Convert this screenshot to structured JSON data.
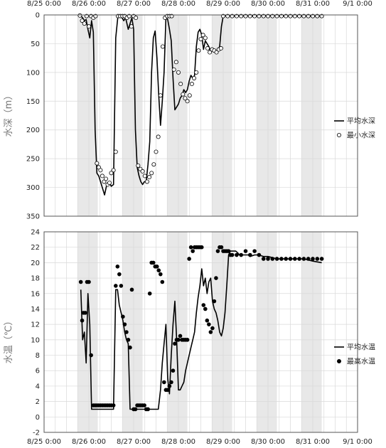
{
  "chart_data": [
    {
      "type": "line",
      "ylabel": "水深（m）",
      "y_reversed": true,
      "ylim": [
        0,
        350
      ],
      "y_ticks": [
        0,
        50,
        100,
        150,
        200,
        250,
        300,
        350
      ],
      "xlim": [
        "8/25 0:00",
        "9/1 0:00"
      ],
      "x_tick_labels": [
        "8/25 0:00",
        "8/26 0:00",
        "8/27 0:00",
        "8/28 0:00",
        "8/29 0:00",
        "8/30 0:00",
        "8/31 0:00",
        "9/1 0:00"
      ],
      "x_tick_labels_position": "top",
      "shaded_night_periods": [
        [
          0.75,
          1.2
        ],
        [
          1.75,
          2.2
        ],
        [
          2.75,
          3.2
        ],
        [
          3.75,
          4.2
        ],
        [
          4.75,
          5.2
        ],
        [
          5.75,
          6.2
        ]
      ],
      "legend_position": "right",
      "grid": true,
      "series": [
        {
          "name": "平均水深",
          "style": "line",
          "color": "#000000",
          "x": [
            0.82,
            0.86,
            0.9,
            0.94,
            0.98,
            1.02,
            1.06,
            1.1,
            1.14,
            1.18,
            1.22,
            1.26,
            1.3,
            1.35,
            1.4,
            1.45,
            1.5,
            1.55,
            1.6,
            1.65,
            1.7,
            1.74,
            1.78,
            1.82,
            1.88,
            1.92,
            1.96,
            2.0,
            2.04,
            2.08,
            2.12,
            2.16,
            2.2,
            2.24,
            2.28,
            2.32,
            2.36,
            2.4,
            2.44,
            2.48,
            2.52,
            2.56,
            2.6,
            2.64,
            2.68,
            2.72,
            2.76,
            2.8,
            2.84,
            2.88,
            2.92,
            2.96,
            3.0,
            3.04,
            3.08,
            3.12,
            3.16,
            3.2,
            3.24,
            3.28,
            3.32,
            3.36,
            3.4,
            3.44,
            3.48,
            3.52,
            3.56,
            3.6,
            3.64,
            3.68,
            3.72,
            3.76,
            3.8,
            3.84,
            3.88,
            3.92,
            3.96,
            4.0,
            4.04,
            4.08,
            4.12,
            4.16,
            4.2,
            4.24,
            4.28,
            4.32,
            4.36,
            4.4,
            4.44,
            4.48,
            4.52,
            4.56,
            4.6,
            4.64,
            4.68,
            4.72,
            4.76,
            4.8,
            4.84,
            4.88,
            4.92,
            4.96,
            5.0,
            5.2,
            5.4,
            5.6,
            5.8,
            6.0,
            6.2
          ],
          "y": [
            2,
            5,
            10,
            8,
            25,
            40,
            10,
            30,
            200,
            275,
            280,
            290,
            300,
            313,
            295,
            290,
            298,
            295,
            40,
            2,
            3,
            5,
            10,
            5,
            25,
            15,
            5,
            25,
            200,
            265,
            280,
            290,
            295,
            290,
            290,
            260,
            220,
            100,
            40,
            28,
            75,
            140,
            192,
            150,
            100,
            5,
            8,
            25,
            45,
            110,
            165,
            160,
            155,
            145,
            140,
            130,
            135,
            130,
            115,
            105,
            110,
            105,
            55,
            30,
            25,
            35,
            60,
            45,
            50,
            55,
            65,
            60,
            62,
            65,
            60,
            55,
            20,
            2,
            1,
            1,
            1,
            2,
            2,
            2,
            1,
            2,
            1,
            1,
            2,
            1,
            1,
            2,
            1,
            2,
            1,
            1,
            2,
            2,
            1,
            2,
            2,
            1,
            1,
            1,
            2,
            2,
            2,
            2,
            2
          ]
        },
        {
          "name": "最小水深",
          "style": "open-circle",
          "color": "#000000",
          "x": [
            0.8,
            0.85,
            0.9,
            0.95,
            1.0,
            1.05,
            1.1,
            1.15,
            1.18,
            1.22,
            1.26,
            1.3,
            1.34,
            1.38,
            1.42,
            1.46,
            1.5,
            1.55,
            1.6,
            1.65,
            1.7,
            1.75,
            1.8,
            1.85,
            1.9,
            1.95,
            2.0,
            2.05,
            2.1,
            2.15,
            2.2,
            2.25,
            2.3,
            2.35,
            2.4,
            2.45,
            2.5,
            2.55,
            2.6,
            2.65,
            2.7,
            2.75,
            2.8,
            2.85,
            2.9,
            2.95,
            3.0,
            3.05,
            3.1,
            3.15,
            3.2,
            3.25,
            3.3,
            3.35,
            3.4,
            3.45,
            3.5,
            3.55,
            3.6,
            3.65,
            3.7,
            3.75,
            3.8,
            3.85,
            3.9,
            3.95,
            4.0,
            4.1,
            4.2,
            4.3,
            4.4,
            4.5,
            4.6,
            4.7,
            4.8,
            4.9,
            5.0,
            5.1,
            5.2,
            5.3,
            5.4,
            5.5,
            5.6,
            5.7,
            5.8,
            5.9,
            6.0,
            6.1,
            6.2
          ],
          "y": [
            1,
            10,
            15,
            2,
            20,
            2,
            5,
            2,
            258,
            265,
            270,
            280,
            290,
            285,
            295,
            292,
            275,
            270,
            238,
            2,
            2,
            2,
            2,
            5,
            2,
            20,
            2,
            5,
            262,
            268,
            272,
            280,
            290,
            282,
            275,
            260,
            238,
            212,
            140,
            55,
            5,
            2,
            2,
            2,
            95,
            82,
            100,
            120,
            138,
            145,
            150,
            140,
            120,
            110,
            100,
            62,
            42,
            35,
            40,
            58,
            65,
            60,
            62,
            65,
            60,
            58,
            2,
            2,
            2,
            2,
            2,
            2,
            2,
            2,
            2,
            2,
            2,
            2,
            2,
            2,
            2,
            2,
            2,
            2,
            2,
            2,
            2,
            2,
            2
          ]
        }
      ]
    },
    {
      "type": "line",
      "ylabel": "水温（℃）",
      "ylim": [
        -2,
        24
      ],
      "y_ticks": [
        -2,
        0,
        2,
        4,
        6,
        8,
        10,
        12,
        14,
        16,
        18,
        20,
        22,
        24
      ],
      "xlim": [
        "8/25 0:00",
        "9/1 0:00"
      ],
      "x_tick_labels": [
        "8/25 0:00",
        "8/26 0:00",
        "8/27 0:00",
        "8/28 0:00",
        "8/29 0:00",
        "8/30 0:00",
        "8/31 0:00",
        "9/1 0:00"
      ],
      "shaded_night_periods": [
        [
          0.75,
          1.2
        ],
        [
          1.75,
          2.2
        ],
        [
          2.75,
          3.2
        ],
        [
          3.75,
          4.2
        ],
        [
          4.75,
          5.2
        ],
        [
          5.75,
          6.2
        ]
      ],
      "legend_position": "right",
      "grid": true,
      "series": [
        {
          "name": "平均水温",
          "style": "line",
          "color": "#000000",
          "x": [
            0.82,
            0.86,
            0.9,
            0.94,
            0.98,
            1.02,
            1.06,
            1.1,
            1.14,
            1.18,
            1.22,
            1.3,
            1.4,
            1.5,
            1.55,
            1.6,
            1.64,
            1.68,
            1.72,
            1.76,
            1.8,
            1.84,
            1.88,
            1.92,
            1.96,
            2.0,
            2.04,
            2.08,
            2.12,
            2.2,
            2.3,
            2.4,
            2.5,
            2.55,
            2.6,
            2.64,
            2.68,
            2.72,
            2.76,
            2.8,
            2.84,
            2.88,
            2.92,
            2.96,
            3.0,
            3.04,
            3.08,
            3.12,
            3.16,
            3.2,
            3.24,
            3.28,
            3.32,
            3.36,
            3.4,
            3.44,
            3.48,
            3.52,
            3.56,
            3.6,
            3.64,
            3.68,
            3.72,
            3.76,
            3.8,
            3.84,
            3.88,
            3.92,
            3.96,
            4.0,
            4.04,
            4.08,
            4.12,
            4.16,
            4.2,
            4.24,
            4.28,
            4.32,
            4.36,
            4.4,
            4.44,
            4.48,
            4.52,
            4.56,
            4.6,
            4.7,
            4.8,
            4.9,
            5.0,
            5.2,
            5.4,
            5.6,
            5.8,
            6.0,
            6.2
          ],
          "y": [
            16.5,
            10,
            11,
            7,
            16,
            12,
            1,
            1,
            1,
            1,
            1,
            1,
            1,
            1,
            1,
            16.5,
            16.5,
            14.5,
            13.5,
            12.5,
            11,
            10,
            9.5,
            1,
            1,
            1,
            1,
            1,
            1,
            1,
            1,
            1,
            1,
            1,
            3.5,
            7,
            9.5,
            12,
            5,
            3,
            8,
            12,
            15,
            10,
            3.5,
            3.5,
            4,
            4.5,
            6,
            7,
            8,
            9,
            10,
            11,
            13.5,
            15.5,
            17,
            19.2,
            17,
            18,
            16,
            17.5,
            18,
            15,
            14,
            13.5,
            12.5,
            11,
            10.5,
            11.5,
            13.5,
            17,
            21,
            21.5,
            21.5,
            21.5,
            21.5,
            21.3,
            21,
            21,
            21,
            21,
            21,
            21,
            20.8,
            21,
            21,
            20.8,
            20.8,
            20.5,
            20.5,
            20.5,
            20.5,
            20.2,
            20
          ]
        },
        {
          "name": "最高水温",
          "style": "filled-circle",
          "color": "#000000",
          "x": [
            0.82,
            0.85,
            0.88,
            0.92,
            0.96,
            1.0,
            1.05,
            1.1,
            1.14,
            1.18,
            1.22,
            1.26,
            1.3,
            1.34,
            1.38,
            1.42,
            1.46,
            1.5,
            1.55,
            1.6,
            1.64,
            1.68,
            1.72,
            1.76,
            1.8,
            1.84,
            1.88,
            1.92,
            1.96,
            2.0,
            2.04,
            2.08,
            2.12,
            2.16,
            2.2,
            2.24,
            2.28,
            2.32,
            2.36,
            2.4,
            2.44,
            2.48,
            2.52,
            2.56,
            2.6,
            2.64,
            2.68,
            2.72,
            2.76,
            2.8,
            2.84,
            2.88,
            2.92,
            2.96,
            3.0,
            3.04,
            3.08,
            3.12,
            3.16,
            3.2,
            3.24,
            3.28,
            3.32,
            3.36,
            3.4,
            3.44,
            3.48,
            3.52,
            3.56,
            3.6,
            3.64,
            3.68,
            3.72,
            3.76,
            3.8,
            3.84,
            3.88,
            3.92,
            3.96,
            4.0,
            4.04,
            4.08,
            4.12,
            4.16,
            4.2,
            4.3,
            4.4,
            4.5,
            4.6,
            4.7,
            4.8,
            4.9,
            5.0,
            5.1,
            5.2,
            5.3,
            5.4,
            5.5,
            5.6,
            5.7,
            5.8,
            5.9,
            6.0,
            6.1,
            6.2
          ],
          "y": [
            17.5,
            12.5,
            13.5,
            13.5,
            17.5,
            17.5,
            8,
            1.5,
            1.5,
            1.5,
            1.5,
            1.5,
            1.5,
            1.5,
            1.5,
            1.5,
            1.5,
            1.5,
            1.5,
            17,
            19.5,
            18.5,
            17,
            13,
            12,
            11,
            10,
            9,
            16.5,
            1,
            1,
            1.5,
            1.5,
            1.5,
            1.5,
            1.5,
            1,
            1,
            16,
            20,
            20,
            19.5,
            19.5,
            19,
            18.5,
            17.5,
            4.5,
            3.5,
            3.5,
            4,
            4.5,
            6,
            9.5,
            10,
            10,
            10.5,
            10,
            10,
            10,
            10,
            20.5,
            22,
            21.5,
            22,
            22,
            22,
            22,
            22,
            14.5,
            14,
            12.5,
            12,
            11,
            11.5,
            15,
            18,
            21.5,
            22,
            22,
            21.5,
            21.5,
            21.5,
            21.5,
            21,
            21,
            21,
            21,
            21.5,
            21,
            21.5,
            21,
            20.5,
            20.5,
            20.5,
            20.5,
            20.5,
            20.5,
            20.5,
            20.5,
            20.5,
            20.5,
            20.5,
            20.5,
            20.5,
            20.5
          ]
        }
      ]
    }
  ]
}
